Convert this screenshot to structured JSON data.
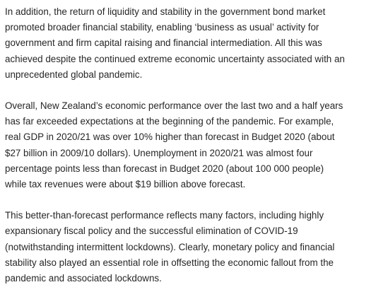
{
  "document": {
    "paragraphs": [
      {
        "lines": [
          "In addition, the return of liquidity and stability in the government bond market",
          "promoted broader financial stability, enabling ‘business as usual’ activity for",
          "government and firm capital raising and financial intermediation. All this was",
          "achieved despite the continued extreme economic uncertainty associated with an",
          "unprecedented global pandemic."
        ]
      },
      {
        "lines": [
          "Overall, New Zealand’s economic performance over the last two and a half years",
          "has far exceeded expectations at the beginning of the pandemic. For example,",
          "real GDP in 2020/21 was over 10% higher than forecast in Budget 2020 (about",
          "$27 billion in 2009/10 dollars). Unemployment in 2020/21 was almost four",
          "percentage points less than forecast in Budget 2020 (about 100 000 people)",
          "while tax revenues were about $19 billion above forecast."
        ]
      },
      {
        "lines": [
          "This better-than-forecast performance reflects many factors, including highly",
          "expansionary fiscal policy and the successful elimination of COVID-19",
          "(notwithstanding intermittent lockdowns). Clearly, monetary policy and financial",
          "stability also played an essential role in offsetting the economic fallout from the",
          "pandemic and associated lockdowns."
        ]
      }
    ]
  }
}
